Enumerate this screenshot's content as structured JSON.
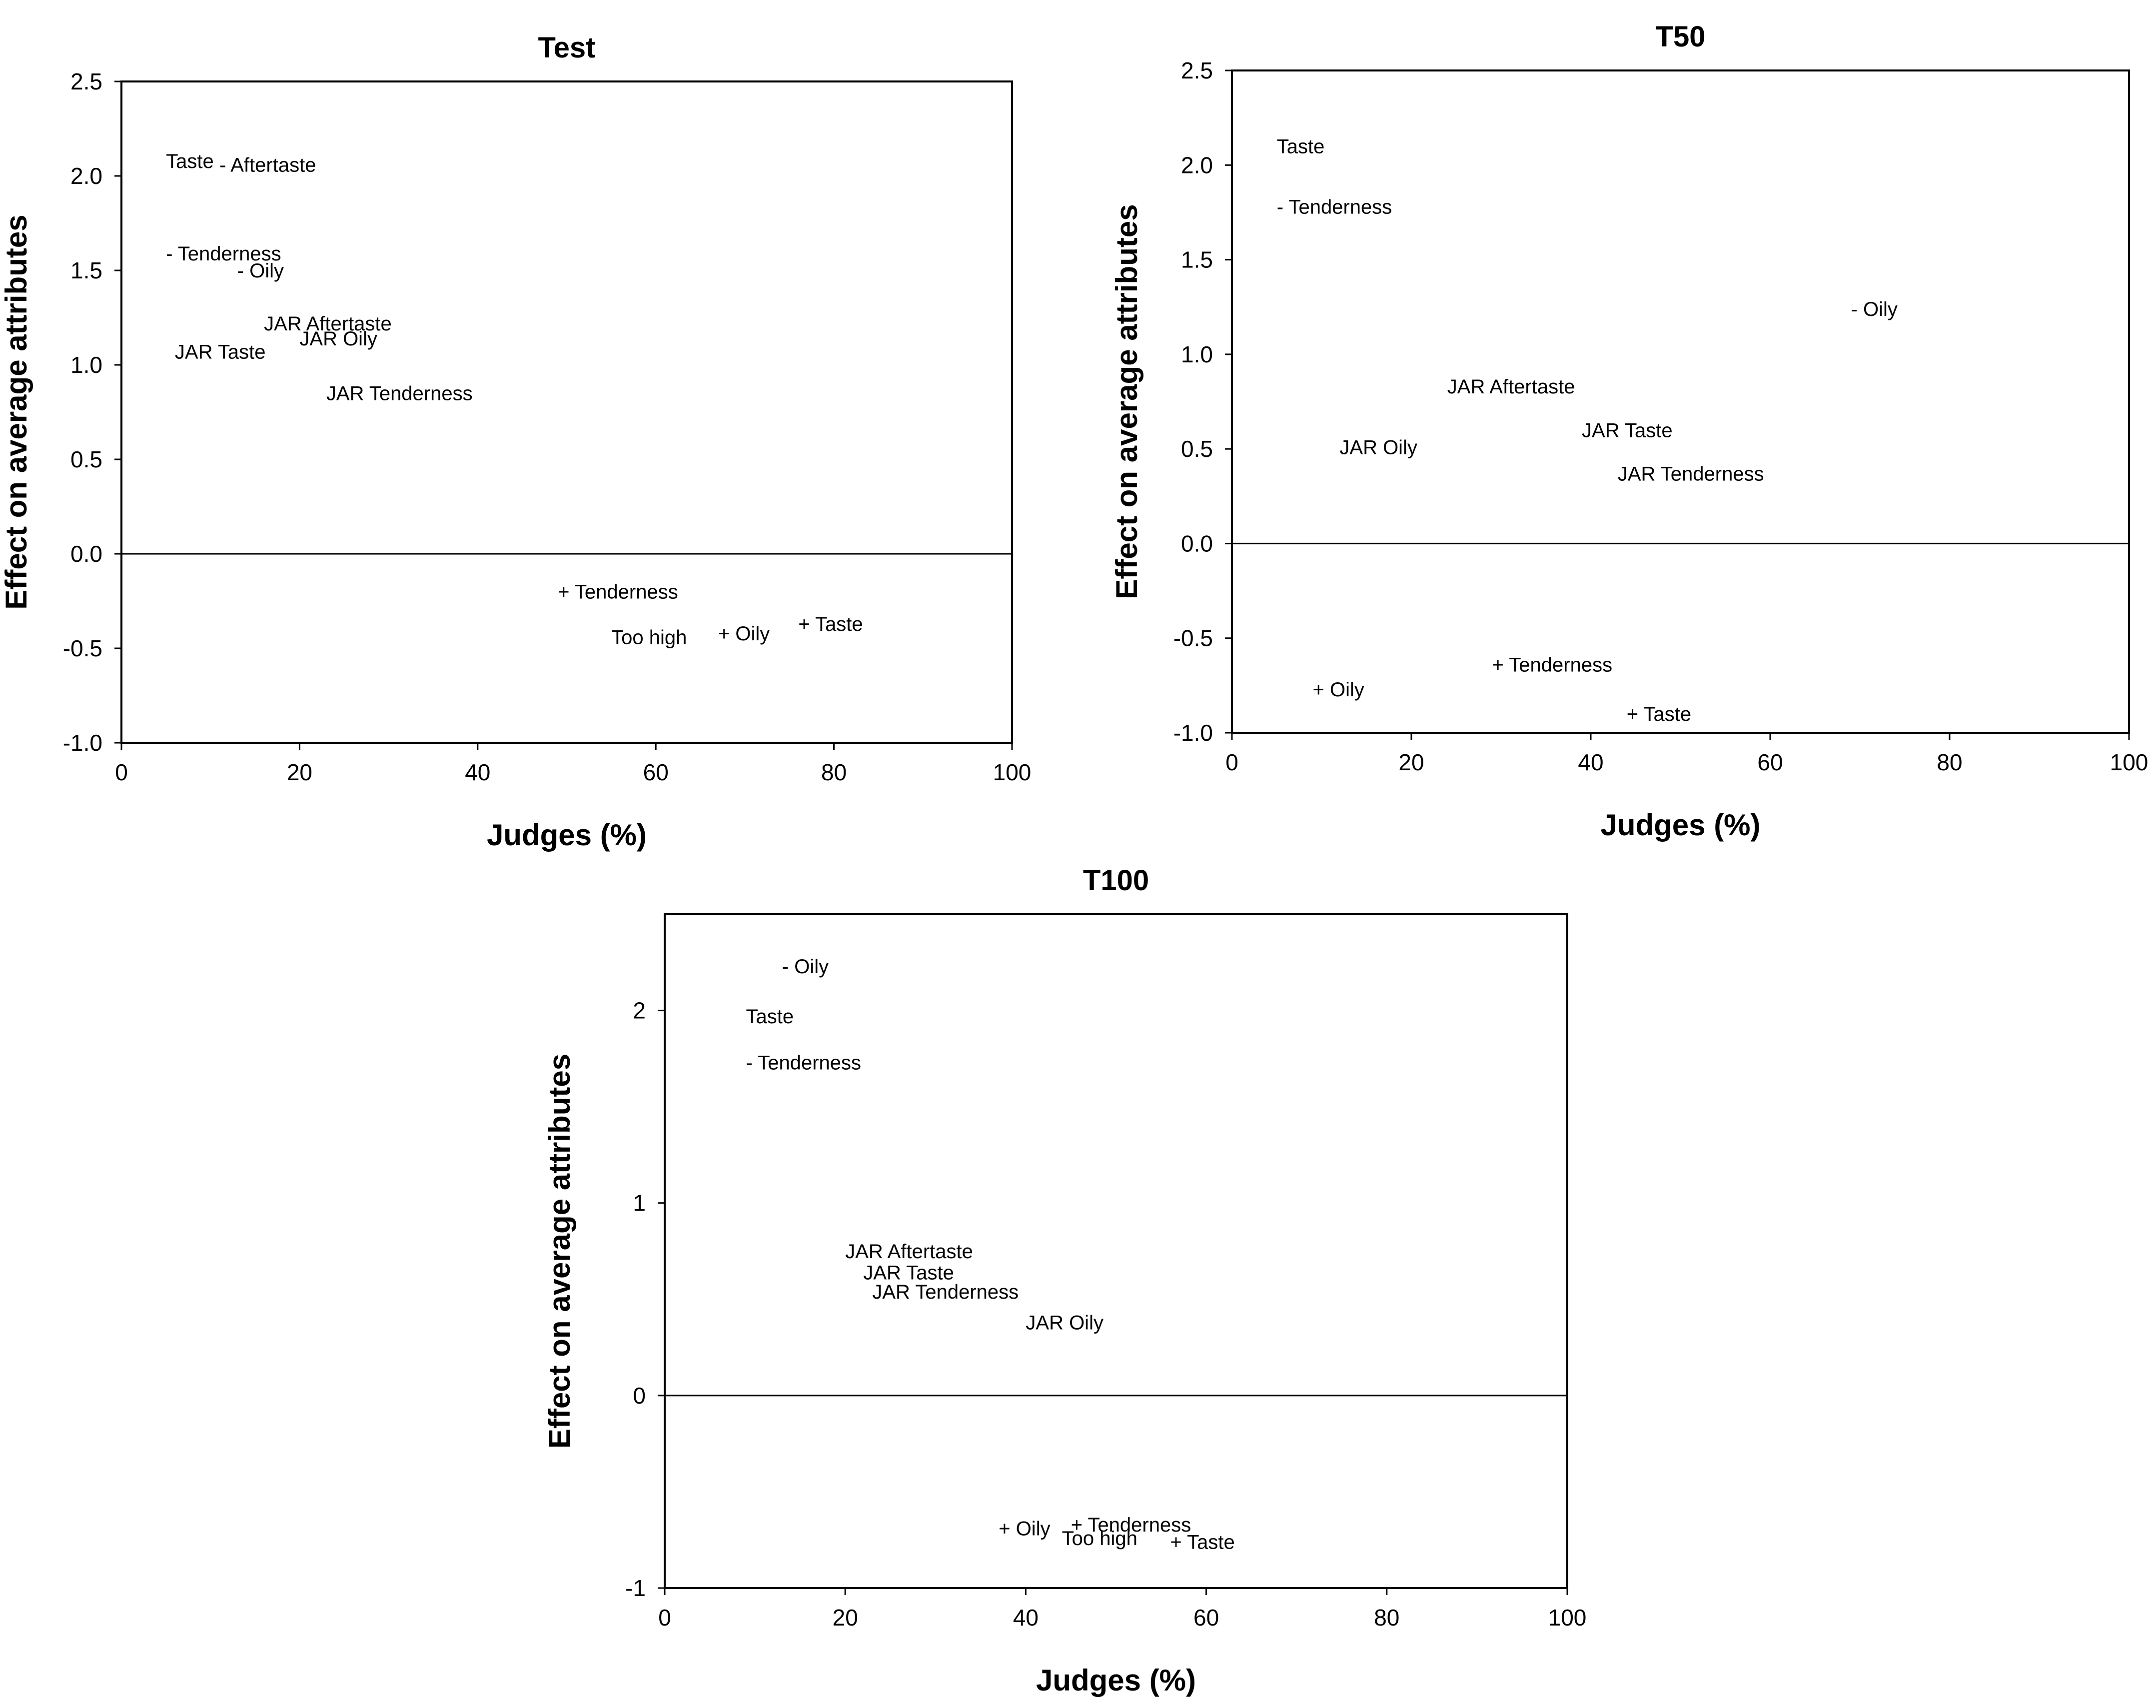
{
  "chart_data": [
    {
      "type": "scatter",
      "title": "Test",
      "xlabel": "Judges (%)",
      "ylabel": "Effect on average attributes",
      "xlim": [
        0,
        100
      ],
      "ylim": [
        -1.0,
        2.5
      ],
      "xticks": [
        0,
        20,
        40,
        60,
        80,
        100
      ],
      "xtick_labels": [
        "0",
        "20",
        "40",
        "60",
        "80",
        "100"
      ],
      "yticks": [
        -1.0,
        -0.5,
        0.0,
        0.5,
        1.0,
        1.5,
        2.0,
        2.5
      ],
      "ytick_labels": [
        "-1.0",
        "-0.5",
        "0.0",
        "0.5",
        "1.0",
        "1.5",
        "2.0",
        "2.5"
      ],
      "reference_line_y": 0,
      "points": [
        {
          "label": "Taste",
          "x": 5,
          "y": 2.08
        },
        {
          "label": "- Aftertaste",
          "x": 11,
          "y": 2.06
        },
        {
          "label": "- Tenderness",
          "x": 5,
          "y": 1.59
        },
        {
          "label": "- Oily",
          "x": 13,
          "y": 1.5
        },
        {
          "label": "JAR Aftertaste",
          "x": 16,
          "y": 1.22
        },
        {
          "label": "JAR Oily",
          "x": 20,
          "y": 1.14
        },
        {
          "label": "JAR Taste",
          "x": 6,
          "y": 1.07
        },
        {
          "label": "JAR Tenderness",
          "x": 23,
          "y": 0.85
        },
        {
          "label": "+ Tenderness",
          "x": 49,
          "y": -0.2
        },
        {
          "label": "+ Taste",
          "x": 76,
          "y": -0.37
        },
        {
          "label": "+ Oily",
          "x": 67,
          "y": -0.42
        },
        {
          "label": "Too high",
          "x": 55,
          "y": -0.44
        }
      ]
    },
    {
      "type": "scatter",
      "title": "T50",
      "xlabel": "Judges (%)",
      "ylabel": "Effect on average attributes",
      "xlim": [
        0,
        100
      ],
      "ylim": [
        -1.0,
        2.5
      ],
      "xticks": [
        0,
        20,
        40,
        60,
        80,
        100
      ],
      "xtick_labels": [
        "0",
        "20",
        "40",
        "60",
        "80",
        "100"
      ],
      "yticks": [
        -1.0,
        -0.5,
        0.0,
        0.5,
        1.0,
        1.5,
        2.0,
        2.5
      ],
      "ytick_labels": [
        "-1.0",
        "-0.5",
        "0.0",
        "0.5",
        "1.0",
        "1.5",
        "2.0",
        "2.5"
      ],
      "reference_line_y": 0,
      "points": [
        {
          "label": "Taste",
          "x": 5,
          "y": 2.1
        },
        {
          "label": "- Tenderness",
          "x": 5,
          "y": 1.78
        },
        {
          "label": "- Oily",
          "x": 69,
          "y": 1.24
        },
        {
          "label": "JAR Aftertaste",
          "x": 24,
          "y": 0.83
        },
        {
          "label": "JAR Taste",
          "x": 39,
          "y": 0.6
        },
        {
          "label": "JAR Oily",
          "x": 12,
          "y": 0.51
        },
        {
          "label": "JAR Tenderness",
          "x": 43,
          "y": 0.37
        },
        {
          "label": "+ Tenderness",
          "x": 29,
          "y": -0.64
        },
        {
          "label": "+ Oily",
          "x": 9,
          "y": -0.77
        },
        {
          "label": "+ Taste",
          "x": 44,
          "y": -0.9
        }
      ]
    },
    {
      "type": "scatter",
      "title": "T100",
      "xlabel": "Judges (%)",
      "ylabel": "Effect on average attributes",
      "xlim": [
        0,
        100
      ],
      "ylim": [
        -1,
        2.5
      ],
      "xticks": [
        0,
        20,
        40,
        60,
        80,
        100
      ],
      "xtick_labels": [
        "0",
        "20",
        "40",
        "60",
        "80",
        "100"
      ],
      "yticks": [
        -1,
        0,
        1,
        2
      ],
      "ytick_labels": [
        "-1",
        "0",
        "1",
        "2"
      ],
      "reference_line_y": 0,
      "points": [
        {
          "label": "- Oily",
          "x": 13,
          "y": 2.23
        },
        {
          "label": "Taste",
          "x": 9,
          "y": 1.97
        },
        {
          "label": "- Tenderness",
          "x": 9,
          "y": 1.73
        },
        {
          "label": "JAR Aftertaste",
          "x": 20,
          "y": 0.75
        },
        {
          "label": "JAR Taste",
          "x": 22,
          "y": 0.64
        },
        {
          "label": "JAR Tenderness",
          "x": 23,
          "y": 0.54
        },
        {
          "label": "JAR Oily",
          "x": 40,
          "y": 0.38
        },
        {
          "label": "+ Tenderness",
          "x": 45,
          "y": -0.67
        },
        {
          "label": "+ Oily",
          "x": 37,
          "y": -0.69
        },
        {
          "label": "Too high",
          "x": 44,
          "y": -0.74
        },
        {
          "label": "+ Taste",
          "x": 56,
          "y": -0.76
        }
      ]
    }
  ]
}
